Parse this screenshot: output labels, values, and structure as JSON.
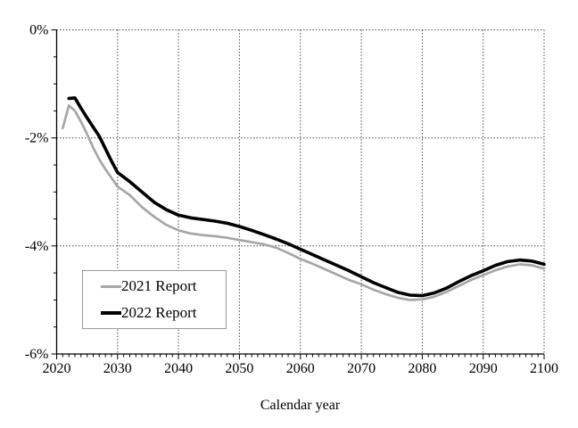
{
  "colors": {
    "background": "#ffffff",
    "axis": "#000000",
    "grid": "#4d4d4d",
    "text": "#000000",
    "legend_border": "#9a9a9a",
    "series_2021": "#a6a6a6",
    "series_2022": "#000000"
  },
  "chart_data": {
    "type": "line",
    "title": "",
    "xlabel": "Calendar year",
    "ylabel": "",
    "grid": {
      "horizontal": true,
      "vertical": true,
      "style": "dotted"
    },
    "x_axis": {
      "min": 2020,
      "max": 2100,
      "major_tick_interval": 10,
      "minor_tick_interval": 1,
      "ticks": [
        {
          "v": 2020,
          "label": "2020"
        },
        {
          "v": 2030,
          "label": "2030"
        },
        {
          "v": 2040,
          "label": "2040"
        },
        {
          "v": 2050,
          "label": "2050"
        },
        {
          "v": 2060,
          "label": "2060"
        },
        {
          "v": 2070,
          "label": "2070"
        },
        {
          "v": 2080,
          "label": "2080"
        },
        {
          "v": 2090,
          "label": "2090"
        },
        {
          "v": 2100,
          "label": "2100"
        }
      ]
    },
    "y_axis": {
      "min": -6,
      "max": 0,
      "unit": "%",
      "major_tick_interval": 2,
      "minor_tick_interval": 0.5,
      "ticks": [
        {
          "v": 0,
          "label": "0%"
        },
        {
          "v": -2,
          "label": "-2%"
        },
        {
          "v": -4,
          "label": "-4%"
        },
        {
          "v": -6,
          "label": "-6%"
        }
      ]
    },
    "legend": {
      "position": "lower-left",
      "entries": [
        {
          "label": "2021 Report",
          "color": "#a6a6a6",
          "sample_height": 3
        },
        {
          "label": "2022 Report",
          "color": "#000000",
          "sample_height": 4
        }
      ]
    },
    "series": [
      {
        "name": "2021 Report",
        "color": "#a6a6a6",
        "stroke_width": 2.7,
        "points": [
          [
            2021,
            -1.82
          ],
          [
            2022,
            -1.4
          ],
          [
            2023,
            -1.5
          ],
          [
            2024,
            -1.7
          ],
          [
            2025,
            -1.93
          ],
          [
            2026,
            -2.18
          ],
          [
            2027,
            -2.4
          ],
          [
            2028,
            -2.58
          ],
          [
            2029,
            -2.74
          ],
          [
            2030,
            -2.9
          ],
          [
            2032,
            -3.06
          ],
          [
            2034,
            -3.28
          ],
          [
            2036,
            -3.46
          ],
          [
            2038,
            -3.61
          ],
          [
            2040,
            -3.71
          ],
          [
            2042,
            -3.77
          ],
          [
            2044,
            -3.8
          ],
          [
            2046,
            -3.82
          ],
          [
            2048,
            -3.85
          ],
          [
            2050,
            -3.89
          ],
          [
            2052,
            -3.93
          ],
          [
            2054,
            -3.97
          ],
          [
            2056,
            -4.03
          ],
          [
            2058,
            -4.13
          ],
          [
            2060,
            -4.24
          ],
          [
            2062,
            -4.33
          ],
          [
            2064,
            -4.43
          ],
          [
            2066,
            -4.53
          ],
          [
            2068,
            -4.63
          ],
          [
            2070,
            -4.71
          ],
          [
            2072,
            -4.81
          ],
          [
            2074,
            -4.89
          ],
          [
            2076,
            -4.96
          ],
          [
            2078,
            -5.0
          ],
          [
            2080,
            -4.99
          ],
          [
            2082,
            -4.94
          ],
          [
            2084,
            -4.85
          ],
          [
            2086,
            -4.74
          ],
          [
            2088,
            -4.63
          ],
          [
            2090,
            -4.54
          ],
          [
            2092,
            -4.45
          ],
          [
            2094,
            -4.38
          ],
          [
            2096,
            -4.34
          ],
          [
            2098,
            -4.36
          ],
          [
            2100,
            -4.42
          ]
        ]
      },
      {
        "name": "2022 Report",
        "color": "#000000",
        "stroke_width": 3.6,
        "points": [
          [
            2022,
            -1.27
          ],
          [
            2023,
            -1.26
          ],
          [
            2024,
            -1.45
          ],
          [
            2025,
            -1.63
          ],
          [
            2026,
            -1.8
          ],
          [
            2027,
            -1.97
          ],
          [
            2028,
            -2.2
          ],
          [
            2029,
            -2.43
          ],
          [
            2030,
            -2.64
          ],
          [
            2032,
            -2.81
          ],
          [
            2034,
            -3.0
          ],
          [
            2036,
            -3.19
          ],
          [
            2038,
            -3.33
          ],
          [
            2040,
            -3.43
          ],
          [
            2042,
            -3.48
          ],
          [
            2044,
            -3.51
          ],
          [
            2046,
            -3.54
          ],
          [
            2048,
            -3.58
          ],
          [
            2050,
            -3.64
          ],
          [
            2052,
            -3.71
          ],
          [
            2054,
            -3.79
          ],
          [
            2056,
            -3.87
          ],
          [
            2058,
            -3.96
          ],
          [
            2060,
            -4.06
          ],
          [
            2062,
            -4.16
          ],
          [
            2064,
            -4.26
          ],
          [
            2066,
            -4.36
          ],
          [
            2068,
            -4.46
          ],
          [
            2070,
            -4.57
          ],
          [
            2072,
            -4.68
          ],
          [
            2074,
            -4.77
          ],
          [
            2076,
            -4.86
          ],
          [
            2078,
            -4.91
          ],
          [
            2080,
            -4.92
          ],
          [
            2082,
            -4.87
          ],
          [
            2084,
            -4.78
          ],
          [
            2086,
            -4.66
          ],
          [
            2088,
            -4.55
          ],
          [
            2090,
            -4.46
          ],
          [
            2092,
            -4.36
          ],
          [
            2094,
            -4.29
          ],
          [
            2096,
            -4.26
          ],
          [
            2098,
            -4.28
          ],
          [
            2100,
            -4.34
          ]
        ]
      }
    ]
  }
}
